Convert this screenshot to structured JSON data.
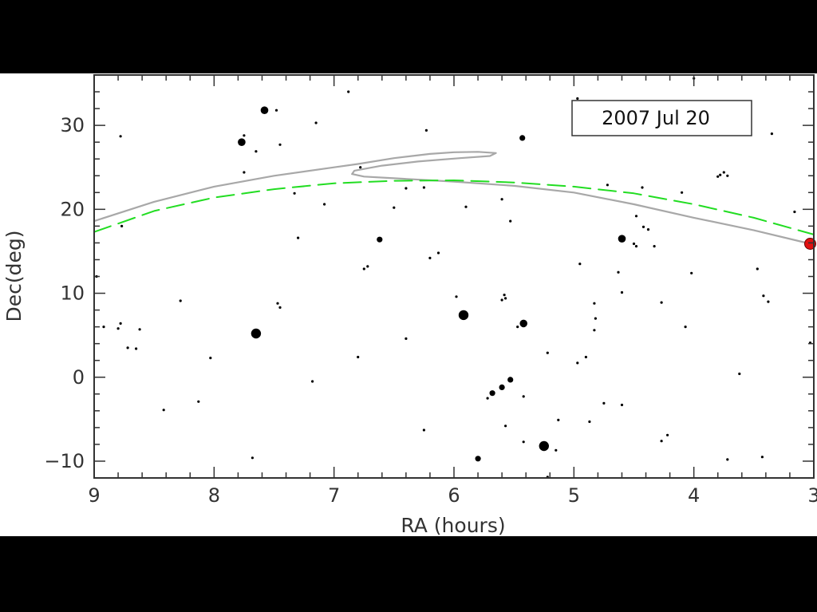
{
  "chart_data": {
    "type": "scatter",
    "title": "",
    "annotation": "2007 Jul 20",
    "xlabel": "RA (hours)",
    "ylabel": "Dec(deg)",
    "xlim": [
      9,
      3
    ],
    "ylim": [
      -12,
      36
    ],
    "x_reversed": true,
    "x_ticks": [
      9,
      8,
      7,
      6,
      5,
      4,
      3
    ],
    "x_tick_labels": [
      "9",
      "8",
      "7",
      "6",
      "5",
      "4",
      "3"
    ],
    "y_ticks": [
      -10,
      0,
      10,
      20,
      30
    ],
    "y_tick_labels": [
      "−10",
      "0",
      "10",
      "20",
      "30"
    ],
    "grid": false,
    "colors": {
      "stars": "#000000",
      "path": "#a8a8a8",
      "ecliptic": "#22dd22",
      "object": "#e01010",
      "axes": "#333333"
    },
    "series": [
      {
        "style": "solid",
        "color": "#a8a8a8",
        "points": [
          [
            9.0,
            18.6
          ],
          [
            8.5,
            20.9
          ],
          [
            8.0,
            22.7
          ],
          [
            7.5,
            24.0
          ],
          [
            7.0,
            25.0
          ],
          [
            6.8,
            25.4
          ],
          [
            6.5,
            26.1
          ],
          [
            6.2,
            26.6
          ],
          [
            6.0,
            26.8
          ],
          [
            5.8,
            26.85
          ],
          [
            5.65,
            26.7
          ],
          [
            5.7,
            26.35
          ],
          [
            5.95,
            26.1
          ],
          [
            6.3,
            25.7
          ],
          [
            6.6,
            25.2
          ],
          [
            6.83,
            24.6
          ],
          [
            6.85,
            24.2
          ],
          [
            6.75,
            23.9
          ],
          [
            6.5,
            23.7
          ],
          [
            6.0,
            23.3
          ],
          [
            5.5,
            22.8
          ],
          [
            5.0,
            22.0
          ],
          [
            4.5,
            20.6
          ],
          [
            4.0,
            19.0
          ],
          [
            3.5,
            17.5
          ],
          [
            3.03,
            15.9
          ]
        ]
      },
      {
        "style": "dashed",
        "color": "#22dd22",
        "points": [
          [
            9.0,
            17.3
          ],
          [
            8.5,
            19.8
          ],
          [
            8.0,
            21.4
          ],
          [
            7.5,
            22.4
          ],
          [
            7.0,
            23.1
          ],
          [
            6.5,
            23.4
          ],
          [
            6.0,
            23.45
          ],
          [
            5.5,
            23.2
          ],
          [
            5.0,
            22.7
          ],
          [
            4.5,
            21.9
          ],
          [
            4.0,
            20.6
          ],
          [
            3.5,
            19.0
          ],
          [
            3.0,
            17.0
          ]
        ]
      }
    ],
    "object_position": {
      "ra": 3.03,
      "dec": 15.9
    },
    "stars": [
      {
        "ra": 7.58,
        "dec": 31.8,
        "size": 3
      },
      {
        "ra": 7.77,
        "dec": 28.0,
        "size": 3
      },
      {
        "ra": 7.65,
        "dec": 5.2,
        "size": 4
      },
      {
        "ra": 5.92,
        "dec": 7.4,
        "size": 4
      },
      {
        "ra": 5.42,
        "dec": 6.4,
        "size": 3
      },
      {
        "ra": 5.25,
        "dec": -8.2,
        "size": 4
      },
      {
        "ra": 4.6,
        "dec": 16.5,
        "size": 3
      },
      {
        "ra": 6.62,
        "dec": 16.4,
        "size": 2
      },
      {
        "ra": 5.43,
        "dec": 28.5,
        "size": 2
      },
      {
        "ra": 5.68,
        "dec": -1.9,
        "size": 2
      },
      {
        "ra": 5.6,
        "dec": -1.2,
        "size": 2
      },
      {
        "ra": 5.53,
        "dec": -0.3,
        "size": 2
      },
      {
        "ra": 5.8,
        "dec": -9.7,
        "size": 2
      },
      {
        "ra": 7.48,
        "dec": 31.8,
        "size": 1
      },
      {
        "ra": 7.75,
        "dec": 28.8,
        "size": 1
      },
      {
        "ra": 7.65,
        "dec": 26.9,
        "size": 1
      },
      {
        "ra": 7.45,
        "dec": 27.7,
        "size": 1
      },
      {
        "ra": 7.75,
        "dec": 24.4,
        "size": 1
      },
      {
        "ra": 7.15,
        "dec": 30.3,
        "size": 1
      },
      {
        "ra": 6.88,
        "dec": 34.0,
        "size": 1
      },
      {
        "ra": 8.78,
        "dec": 28.7,
        "size": 1
      },
      {
        "ra": 6.78,
        "dec": 25.0,
        "size": 1
      },
      {
        "ra": 6.23,
        "dec": 29.4,
        "size": 1
      },
      {
        "ra": 4.97,
        "dec": 33.2,
        "size": 1
      },
      {
        "ra": 4.0,
        "dec": 35.6,
        "size": 1
      },
      {
        "ra": 3.35,
        "dec": 29.0,
        "size": 1
      },
      {
        "ra": 3.78,
        "dec": 24.1,
        "size": 1
      },
      {
        "ra": 3.75,
        "dec": 24.4,
        "size": 1
      },
      {
        "ra": 3.8,
        "dec": 23.9,
        "size": 1
      },
      {
        "ra": 3.72,
        "dec": 24.0,
        "size": 1
      },
      {
        "ra": 4.43,
        "dec": 22.6,
        "size": 1
      },
      {
        "ra": 4.1,
        "dec": 22.0,
        "size": 1
      },
      {
        "ra": 4.72,
        "dec": 22.9,
        "size": 1
      },
      {
        "ra": 6.4,
        "dec": 22.5,
        "size": 1
      },
      {
        "ra": 6.25,
        "dec": 22.6,
        "size": 1
      },
      {
        "ra": 7.33,
        "dec": 21.9,
        "size": 1
      },
      {
        "ra": 7.08,
        "dec": 20.6,
        "size": 1
      },
      {
        "ra": 6.5,
        "dec": 20.2,
        "size": 1
      },
      {
        "ra": 5.9,
        "dec": 20.3,
        "size": 1
      },
      {
        "ra": 5.6,
        "dec": 21.2,
        "size": 1
      },
      {
        "ra": 5.53,
        "dec": 18.6,
        "size": 1
      },
      {
        "ra": 4.48,
        "dec": 19.2,
        "size": 1
      },
      {
        "ra": 4.38,
        "dec": 17.6,
        "size": 1
      },
      {
        "ra": 4.42,
        "dec": 17.9,
        "size": 1
      },
      {
        "ra": 4.5,
        "dec": 15.9,
        "size": 1
      },
      {
        "ra": 4.48,
        "dec": 15.6,
        "size": 1
      },
      {
        "ra": 4.33,
        "dec": 15.6,
        "size": 1
      },
      {
        "ra": 3.16,
        "dec": 19.7,
        "size": 1
      },
      {
        "ra": 7.3,
        "dec": 16.6,
        "size": 1
      },
      {
        "ra": 6.72,
        "dec": 13.2,
        "size": 1
      },
      {
        "ra": 6.75,
        "dec": 12.9,
        "size": 1
      },
      {
        "ra": 6.2,
        "dec": 14.2,
        "size": 1
      },
      {
        "ra": 6.13,
        "dec": 14.8,
        "size": 1
      },
      {
        "ra": 4.95,
        "dec": 13.5,
        "size": 1
      },
      {
        "ra": 4.63,
        "dec": 12.5,
        "size": 1
      },
      {
        "ra": 4.02,
        "dec": 12.4,
        "size": 1
      },
      {
        "ra": 3.47,
        "dec": 12.9,
        "size": 1
      },
      {
        "ra": 3.42,
        "dec": 9.7,
        "size": 1
      },
      {
        "ra": 3.38,
        "dec": 9.0,
        "size": 1
      },
      {
        "ra": 8.98,
        "dec": 12.0,
        "size": 1
      },
      {
        "ra": 8.28,
        "dec": 9.1,
        "size": 1
      },
      {
        "ra": 7.47,
        "dec": 8.8,
        "size": 1
      },
      {
        "ra": 7.45,
        "dec": 8.3,
        "size": 1
      },
      {
        "ra": 5.98,
        "dec": 9.6,
        "size": 1
      },
      {
        "ra": 5.6,
        "dec": 9.2,
        "size": 1
      },
      {
        "ra": 5.58,
        "dec": 9.8,
        "size": 1
      },
      {
        "ra": 5.57,
        "dec": 9.4,
        "size": 1
      },
      {
        "ra": 4.6,
        "dec": 10.1,
        "size": 1
      },
      {
        "ra": 4.83,
        "dec": 8.8,
        "size": 1
      },
      {
        "ra": 4.82,
        "dec": 7.0,
        "size": 1
      },
      {
        "ra": 4.83,
        "dec": 5.6,
        "size": 1
      },
      {
        "ra": 4.27,
        "dec": 8.9,
        "size": 1
      },
      {
        "ra": 4.07,
        "dec": 6.0,
        "size": 1
      },
      {
        "ra": 8.92,
        "dec": 6.0,
        "size": 1
      },
      {
        "ra": 8.78,
        "dec": 6.4,
        "size": 1
      },
      {
        "ra": 8.8,
        "dec": 5.8,
        "size": 1
      },
      {
        "ra": 8.62,
        "dec": 5.7,
        "size": 1
      },
      {
        "ra": 8.72,
        "dec": 3.5,
        "size": 1
      },
      {
        "ra": 8.65,
        "dec": 3.4,
        "size": 1
      },
      {
        "ra": 8.03,
        "dec": 2.3,
        "size": 1
      },
      {
        "ra": 6.8,
        "dec": 2.4,
        "size": 1
      },
      {
        "ra": 6.4,
        "dec": 4.6,
        "size": 1
      },
      {
        "ra": 5.47,
        "dec": 6.0,
        "size": 1
      },
      {
        "ra": 4.9,
        "dec": 2.4,
        "size": 1
      },
      {
        "ra": 4.97,
        "dec": 1.7,
        "size": 1
      },
      {
        "ra": 5.22,
        "dec": 2.9,
        "size": 1
      },
      {
        "ra": 3.62,
        "dec": 0.4,
        "size": 1
      },
      {
        "ra": 3.03,
        "dec": 4.1,
        "size": 1
      },
      {
        "ra": 7.18,
        "dec": -0.5,
        "size": 1
      },
      {
        "ra": 8.13,
        "dec": -2.9,
        "size": 1
      },
      {
        "ra": 8.42,
        "dec": -3.9,
        "size": 1
      },
      {
        "ra": 7.68,
        "dec": -9.6,
        "size": 1
      },
      {
        "ra": 6.25,
        "dec": -6.3,
        "size": 1
      },
      {
        "ra": 5.42,
        "dec": -2.3,
        "size": 1
      },
      {
        "ra": 5.57,
        "dec": -5.8,
        "size": 1
      },
      {
        "ra": 5.13,
        "dec": -5.1,
        "size": 1
      },
      {
        "ra": 4.87,
        "dec": -5.3,
        "size": 1
      },
      {
        "ra": 4.75,
        "dec": -3.1,
        "size": 1
      },
      {
        "ra": 4.6,
        "dec": -3.3,
        "size": 1
      },
      {
        "ra": 5.42,
        "dec": -7.7,
        "size": 1
      },
      {
        "ra": 5.15,
        "dec": -8.7,
        "size": 1
      },
      {
        "ra": 5.22,
        "dec": -11.9,
        "size": 1
      },
      {
        "ra": 4.27,
        "dec": -7.6,
        "size": 1
      },
      {
        "ra": 4.22,
        "dec": -6.9,
        "size": 1
      },
      {
        "ra": 3.72,
        "dec": -9.8,
        "size": 1
      },
      {
        "ra": 3.43,
        "dec": -9.5,
        "size": 1
      },
      {
        "ra": 8.77,
        "dec": 18.0,
        "size": 1
      },
      {
        "ra": 5.72,
        "dec": -2.5,
        "size": 1
      }
    ]
  }
}
